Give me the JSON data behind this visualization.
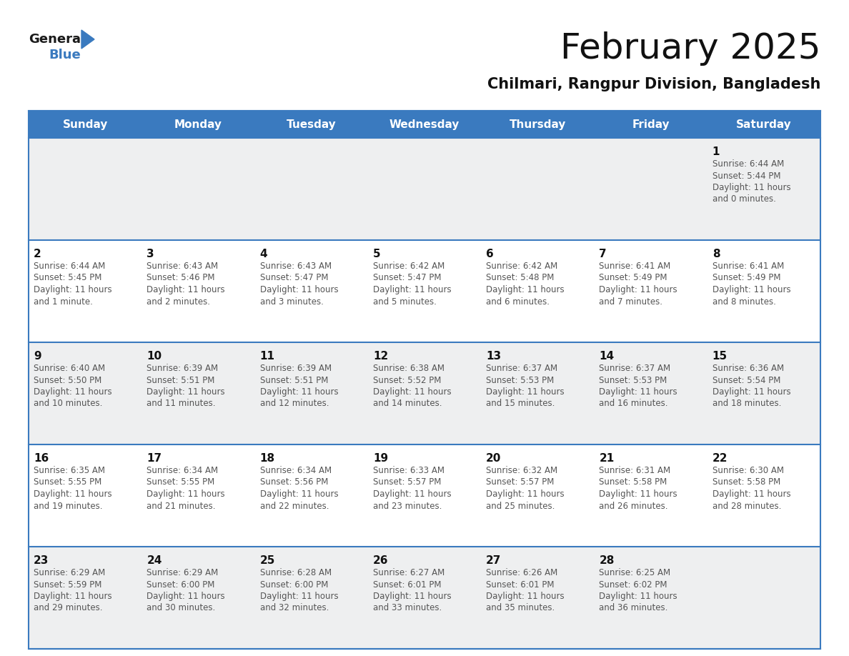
{
  "title": "February 2025",
  "subtitle": "Chilmari, Rangpur Division, Bangladesh",
  "header_color": "#3a7abf",
  "header_text_color": "#ffffff",
  "cell_bg_white": "#ffffff",
  "cell_bg_gray": "#eeeff0",
  "border_color": "#3a7abf",
  "day_names": [
    "Sunday",
    "Monday",
    "Tuesday",
    "Wednesday",
    "Thursday",
    "Friday",
    "Saturday"
  ],
  "days": [
    {
      "day": 1,
      "col": 6,
      "row": 0,
      "sunrise": "6:44 AM",
      "sunset": "5:44 PM",
      "daylight": "11 hours and 0 minutes."
    },
    {
      "day": 2,
      "col": 0,
      "row": 1,
      "sunrise": "6:44 AM",
      "sunset": "5:45 PM",
      "daylight": "11 hours and 1 minute."
    },
    {
      "day": 3,
      "col": 1,
      "row": 1,
      "sunrise": "6:43 AM",
      "sunset": "5:46 PM",
      "daylight": "11 hours and 2 minutes."
    },
    {
      "day": 4,
      "col": 2,
      "row": 1,
      "sunrise": "6:43 AM",
      "sunset": "5:47 PM",
      "daylight": "11 hours and 3 minutes."
    },
    {
      "day": 5,
      "col": 3,
      "row": 1,
      "sunrise": "6:42 AM",
      "sunset": "5:47 PM",
      "daylight": "11 hours and 5 minutes."
    },
    {
      "day": 6,
      "col": 4,
      "row": 1,
      "sunrise": "6:42 AM",
      "sunset": "5:48 PM",
      "daylight": "11 hours and 6 minutes."
    },
    {
      "day": 7,
      "col": 5,
      "row": 1,
      "sunrise": "6:41 AM",
      "sunset": "5:49 PM",
      "daylight": "11 hours and 7 minutes."
    },
    {
      "day": 8,
      "col": 6,
      "row": 1,
      "sunrise": "6:41 AM",
      "sunset": "5:49 PM",
      "daylight": "11 hours and 8 minutes."
    },
    {
      "day": 9,
      "col": 0,
      "row": 2,
      "sunrise": "6:40 AM",
      "sunset": "5:50 PM",
      "daylight": "11 hours and 10 minutes."
    },
    {
      "day": 10,
      "col": 1,
      "row": 2,
      "sunrise": "6:39 AM",
      "sunset": "5:51 PM",
      "daylight": "11 hours and 11 minutes."
    },
    {
      "day": 11,
      "col": 2,
      "row": 2,
      "sunrise": "6:39 AM",
      "sunset": "5:51 PM",
      "daylight": "11 hours and 12 minutes."
    },
    {
      "day": 12,
      "col": 3,
      "row": 2,
      "sunrise": "6:38 AM",
      "sunset": "5:52 PM",
      "daylight": "11 hours and 14 minutes."
    },
    {
      "day": 13,
      "col": 4,
      "row": 2,
      "sunrise": "6:37 AM",
      "sunset": "5:53 PM",
      "daylight": "11 hours and 15 minutes."
    },
    {
      "day": 14,
      "col": 5,
      "row": 2,
      "sunrise": "6:37 AM",
      "sunset": "5:53 PM",
      "daylight": "11 hours and 16 minutes."
    },
    {
      "day": 15,
      "col": 6,
      "row": 2,
      "sunrise": "6:36 AM",
      "sunset": "5:54 PM",
      "daylight": "11 hours and 18 minutes."
    },
    {
      "day": 16,
      "col": 0,
      "row": 3,
      "sunrise": "6:35 AM",
      "sunset": "5:55 PM",
      "daylight": "11 hours and 19 minutes."
    },
    {
      "day": 17,
      "col": 1,
      "row": 3,
      "sunrise": "6:34 AM",
      "sunset": "5:55 PM",
      "daylight": "11 hours and 21 minutes."
    },
    {
      "day": 18,
      "col": 2,
      "row": 3,
      "sunrise": "6:34 AM",
      "sunset": "5:56 PM",
      "daylight": "11 hours and 22 minutes."
    },
    {
      "day": 19,
      "col": 3,
      "row": 3,
      "sunrise": "6:33 AM",
      "sunset": "5:57 PM",
      "daylight": "11 hours and 23 minutes."
    },
    {
      "day": 20,
      "col": 4,
      "row": 3,
      "sunrise": "6:32 AM",
      "sunset": "5:57 PM",
      "daylight": "11 hours and 25 minutes."
    },
    {
      "day": 21,
      "col": 5,
      "row": 3,
      "sunrise": "6:31 AM",
      "sunset": "5:58 PM",
      "daylight": "11 hours and 26 minutes."
    },
    {
      "day": 22,
      "col": 6,
      "row": 3,
      "sunrise": "6:30 AM",
      "sunset": "5:58 PM",
      "daylight": "11 hours and 28 minutes."
    },
    {
      "day": 23,
      "col": 0,
      "row": 4,
      "sunrise": "6:29 AM",
      "sunset": "5:59 PM",
      "daylight": "11 hours and 29 minutes."
    },
    {
      "day": 24,
      "col": 1,
      "row": 4,
      "sunrise": "6:29 AM",
      "sunset": "6:00 PM",
      "daylight": "11 hours and 30 minutes."
    },
    {
      "day": 25,
      "col": 2,
      "row": 4,
      "sunrise": "6:28 AM",
      "sunset": "6:00 PM",
      "daylight": "11 hours and 32 minutes."
    },
    {
      "day": 26,
      "col": 3,
      "row": 4,
      "sunrise": "6:27 AM",
      "sunset": "6:01 PM",
      "daylight": "11 hours and 33 minutes."
    },
    {
      "day": 27,
      "col": 4,
      "row": 4,
      "sunrise": "6:26 AM",
      "sunset": "6:01 PM",
      "daylight": "11 hours and 35 minutes."
    },
    {
      "day": 28,
      "col": 5,
      "row": 4,
      "sunrise": "6:25 AM",
      "sunset": "6:02 PM",
      "daylight": "11 hours and 36 minutes."
    }
  ],
  "logo_color_general": "#1a1a1a",
  "logo_color_blue": "#3a7abf",
  "logo_triangle_color": "#3a7abf",
  "title_fontsize": 36,
  "subtitle_fontsize": 15,
  "header_fontsize": 11,
  "daynum_fontsize": 11,
  "info_fontsize": 8.5,
  "n_rows": 5,
  "n_cols": 7
}
